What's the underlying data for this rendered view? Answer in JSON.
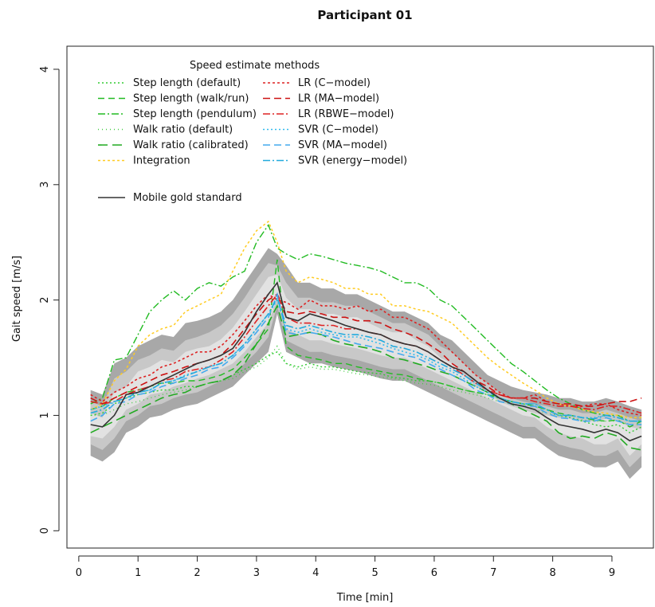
{
  "chart_data": {
    "type": "line",
    "title": "Participant 01",
    "xlabel": "Time [min]",
    "ylabel": "Gait speed [m/s]",
    "xlim": [
      -0.2,
      9.7
    ],
    "ylim": [
      -0.15,
      4.2
    ],
    "xticks": [
      0,
      1,
      2,
      3,
      4,
      5,
      6,
      7,
      8,
      9
    ],
    "yticks": [
      0,
      1,
      2,
      3,
      4
    ],
    "legend_title": "Speed estimate methods",
    "legend_placement": "top-left",
    "grid": false,
    "x": [
      0.2,
      0.4,
      0.6,
      0.8,
      1.0,
      1.2,
      1.4,
      1.6,
      1.8,
      2.0,
      2.2,
      2.4,
      2.6,
      2.8,
      3.0,
      3.2,
      3.35,
      3.5,
      3.7,
      3.9,
      4.1,
      4.3,
      4.5,
      4.7,
      4.9,
      5.1,
      5.3,
      5.5,
      5.7,
      5.9,
      6.1,
      6.3,
      6.5,
      6.7,
      6.9,
      7.1,
      7.3,
      7.5,
      7.7,
      7.9,
      8.1,
      8.3,
      8.5,
      8.7,
      8.9,
      9.1,
      9.3,
      9.5
    ],
    "bands": {
      "outer": {
        "color": "#a8a8a8",
        "upper": [
          1.22,
          1.18,
          1.45,
          1.5,
          1.6,
          1.65,
          1.7,
          1.68,
          1.8,
          1.82,
          1.85,
          1.9,
          2.0,
          2.15,
          2.3,
          2.45,
          2.4,
          2.3,
          2.15,
          2.15,
          2.1,
          2.1,
          2.05,
          2.05,
          2.0,
          1.95,
          1.9,
          1.9,
          1.85,
          1.8,
          1.7,
          1.65,
          1.55,
          1.45,
          1.35,
          1.3,
          1.25,
          1.22,
          1.2,
          1.18,
          1.15,
          1.15,
          1.12,
          1.12,
          1.15,
          1.12,
          1.08,
          1.05
        ],
        "lower": [
          0.65,
          0.6,
          0.68,
          0.85,
          0.9,
          0.98,
          1.0,
          1.05,
          1.08,
          1.1,
          1.15,
          1.2,
          1.25,
          1.35,
          1.45,
          1.55,
          1.88,
          1.55,
          1.5,
          1.45,
          1.45,
          1.42,
          1.4,
          1.38,
          1.35,
          1.32,
          1.3,
          1.3,
          1.25,
          1.2,
          1.15,
          1.1,
          1.05,
          1.0,
          0.95,
          0.9,
          0.85,
          0.8,
          0.8,
          0.72,
          0.65,
          0.62,
          0.6,
          0.55,
          0.55,
          0.6,
          0.45,
          0.55
        ]
      },
      "middle": {
        "color": "#c8c8c8",
        "upper": [
          1.12,
          1.08,
          1.32,
          1.38,
          1.48,
          1.52,
          1.58,
          1.56,
          1.65,
          1.68,
          1.72,
          1.78,
          1.88,
          2.02,
          2.18,
          2.32,
          2.3,
          2.15,
          2.02,
          2.02,
          1.98,
          1.98,
          1.95,
          1.95,
          1.9,
          1.85,
          1.8,
          1.8,
          1.75,
          1.7,
          1.6,
          1.55,
          1.45,
          1.35,
          1.28,
          1.2,
          1.15,
          1.12,
          1.1,
          1.08,
          1.05,
          1.05,
          1.02,
          1.02,
          1.05,
          1.02,
          0.98,
          0.95
        ],
        "lower": [
          0.75,
          0.7,
          0.8,
          0.95,
          1.0,
          1.08,
          1.1,
          1.15,
          1.18,
          1.2,
          1.25,
          1.3,
          1.35,
          1.45,
          1.55,
          1.68,
          1.95,
          1.65,
          1.6,
          1.55,
          1.55,
          1.52,
          1.5,
          1.48,
          1.45,
          1.42,
          1.4,
          1.4,
          1.35,
          1.3,
          1.25,
          1.2,
          1.15,
          1.1,
          1.05,
          1.0,
          0.95,
          0.9,
          0.9,
          0.82,
          0.75,
          0.72,
          0.7,
          0.65,
          0.65,
          0.7,
          0.55,
          0.65
        ]
      },
      "inner": {
        "color": "#e2e2e2",
        "upper": [
          1.02,
          0.98,
          1.2,
          1.25,
          1.38,
          1.42,
          1.48,
          1.46,
          1.55,
          1.58,
          1.6,
          1.66,
          1.76,
          1.9,
          2.05,
          2.2,
          2.22,
          2.02,
          1.92,
          1.92,
          1.88,
          1.88,
          1.85,
          1.85,
          1.8,
          1.75,
          1.72,
          1.72,
          1.65,
          1.6,
          1.5,
          1.45,
          1.35,
          1.25,
          1.2,
          1.12,
          1.08,
          1.05,
          1.02,
          1.0,
          0.98,
          0.97,
          0.95,
          0.95,
          0.97,
          0.95,
          0.9,
          0.88
        ],
        "lower": [
          0.82,
          0.8,
          0.9,
          1.05,
          1.1,
          1.18,
          1.2,
          1.25,
          1.28,
          1.32,
          1.35,
          1.4,
          1.45,
          1.55,
          1.68,
          1.8,
          2.02,
          1.75,
          1.7,
          1.65,
          1.65,
          1.62,
          1.6,
          1.58,
          1.55,
          1.52,
          1.5,
          1.5,
          1.45,
          1.4,
          1.35,
          1.3,
          1.25,
          1.2,
          1.15,
          1.1,
          1.05,
          1.0,
          0.98,
          0.9,
          0.85,
          0.82,
          0.8,
          0.75,
          0.75,
          0.8,
          0.65,
          0.75
        ]
      }
    },
    "series": [
      {
        "name": "Step length (default)",
        "color": "#33cc33",
        "dash": "2,3",
        "width": 1.4,
        "values": [
          1.0,
          1.02,
          1.1,
          1.15,
          1.18,
          1.2,
          1.22,
          1.22,
          1.25,
          1.25,
          1.28,
          1.3,
          1.35,
          1.4,
          1.45,
          1.52,
          1.55,
          1.45,
          1.42,
          1.45,
          1.42,
          1.42,
          1.4,
          1.38,
          1.37,
          1.36,
          1.33,
          1.32,
          1.3,
          1.3,
          1.28,
          1.25,
          1.22,
          1.2,
          1.18,
          1.15,
          1.12,
          1.1,
          1.08,
          1.05,
          1.0,
          0.98,
          0.95,
          0.92,
          0.9,
          0.92,
          0.85,
          0.9
        ]
      },
      {
        "name": "Step length (walk/run)",
        "color": "#22bb22",
        "dash": "8,5",
        "width": 1.4,
        "values": [
          1.05,
          1.08,
          1.15,
          1.2,
          1.22,
          1.25,
          1.28,
          1.28,
          1.3,
          1.3,
          1.32,
          1.35,
          1.4,
          1.5,
          1.62,
          1.75,
          2.35,
          1.6,
          1.52,
          1.5,
          1.48,
          1.45,
          1.45,
          1.42,
          1.4,
          1.38,
          1.36,
          1.35,
          1.32,
          1.3,
          1.28,
          1.25,
          1.22,
          1.2,
          1.18,
          1.15,
          1.12,
          1.1,
          1.08,
          1.05,
          1.02,
          1.0,
          0.98,
          0.96,
          0.95,
          0.96,
          0.9,
          0.95
        ]
      },
      {
        "name": "Step length (pendulum)",
        "color": "#22bb22",
        "dash": "9,3,2,3",
        "width": 1.4,
        "values": [
          1.1,
          1.15,
          1.48,
          1.5,
          1.7,
          1.9,
          2.0,
          2.08,
          2.0,
          2.1,
          2.15,
          2.12,
          2.2,
          2.25,
          2.5,
          2.65,
          2.45,
          2.4,
          2.35,
          2.4,
          2.38,
          2.35,
          2.32,
          2.3,
          2.28,
          2.25,
          2.2,
          2.15,
          2.15,
          2.1,
          2.0,
          1.95,
          1.85,
          1.75,
          1.65,
          1.55,
          1.45,
          1.38,
          1.3,
          1.22,
          1.15,
          1.1,
          1.05,
          1.02,
          1.0,
          1.0,
          0.95,
          0.95
        ]
      },
      {
        "name": "Walk ratio (default)",
        "color": "#44cc44",
        "dash": "1,4",
        "width": 1.4,
        "values": [
          1.0,
          1.0,
          1.05,
          1.1,
          1.12,
          1.15,
          1.18,
          1.2,
          1.22,
          1.25,
          1.28,
          1.3,
          1.32,
          1.38,
          1.42,
          1.5,
          1.6,
          1.45,
          1.4,
          1.42,
          1.4,
          1.4,
          1.38,
          1.36,
          1.35,
          1.33,
          1.32,
          1.3,
          1.28,
          1.27,
          1.25,
          1.22,
          1.2,
          1.18,
          1.15,
          1.12,
          1.1,
          1.08,
          1.05,
          1.02,
          1.0,
          0.98,
          0.96,
          0.95,
          0.95,
          0.95,
          0.92,
          0.92
        ]
      },
      {
        "name": "Walk ratio (calibrated)",
        "color": "#22aa22",
        "dash": "12,6",
        "width": 1.6,
        "values": [
          0.85,
          0.9,
          0.95,
          1.0,
          1.05,
          1.1,
          1.15,
          1.18,
          1.2,
          1.25,
          1.28,
          1.3,
          1.35,
          1.45,
          1.62,
          1.8,
          1.95,
          1.68,
          1.7,
          1.72,
          1.7,
          1.65,
          1.62,
          1.6,
          1.58,
          1.55,
          1.5,
          1.48,
          1.45,
          1.42,
          1.38,
          1.35,
          1.3,
          1.25,
          1.2,
          1.15,
          1.1,
          1.05,
          1.0,
          0.95,
          0.85,
          0.8,
          0.82,
          0.8,
          0.85,
          0.82,
          0.72,
          0.7
        ]
      },
      {
        "name": "Integration",
        "color": "#ffcc22",
        "dash": "3,3",
        "width": 1.5,
        "values": [
          1.05,
          1.1,
          1.3,
          1.4,
          1.6,
          1.7,
          1.75,
          1.78,
          1.9,
          1.95,
          2.0,
          2.05,
          2.25,
          2.45,
          2.6,
          2.68,
          2.5,
          2.25,
          2.15,
          2.2,
          2.18,
          2.15,
          2.1,
          2.1,
          2.05,
          2.05,
          1.95,
          1.95,
          1.92,
          1.9,
          1.85,
          1.8,
          1.7,
          1.6,
          1.5,
          1.42,
          1.35,
          1.28,
          1.22,
          1.15,
          1.1,
          1.08,
          1.05,
          1.03,
          1.02,
          1.0,
          0.98,
          0.98
        ]
      },
      {
        "name": "LR (C−model)",
        "color": "#dd2222",
        "dash": "3,3",
        "width": 1.6,
        "values": [
          1.18,
          1.12,
          1.2,
          1.25,
          1.32,
          1.35,
          1.42,
          1.45,
          1.5,
          1.55,
          1.55,
          1.6,
          1.7,
          1.82,
          1.95,
          2.05,
          2.0,
          1.98,
          1.92,
          2.0,
          1.95,
          1.95,
          1.92,
          1.95,
          1.9,
          1.92,
          1.85,
          1.85,
          1.8,
          1.75,
          1.65,
          1.55,
          1.45,
          1.35,
          1.28,
          1.2,
          1.15,
          1.15,
          1.18,
          1.12,
          1.1,
          1.08,
          1.08,
          1.1,
          1.1,
          1.05,
          1.02,
          1.0
        ]
      },
      {
        "name": "LR (MA−model)",
        "color": "#cc1111",
        "dash": "9,5",
        "width": 1.6,
        "values": [
          1.15,
          1.1,
          1.15,
          1.2,
          1.25,
          1.3,
          1.35,
          1.38,
          1.42,
          1.45,
          1.48,
          1.52,
          1.62,
          1.75,
          1.88,
          2.0,
          2.05,
          1.9,
          1.88,
          1.9,
          1.88,
          1.85,
          1.85,
          1.82,
          1.82,
          1.8,
          1.75,
          1.72,
          1.68,
          1.62,
          1.55,
          1.45,
          1.38,
          1.3,
          1.25,
          1.18,
          1.15,
          1.15,
          1.15,
          1.12,
          1.1,
          1.1,
          1.08,
          1.08,
          1.1,
          1.12,
          1.12,
          1.15
        ]
      },
      {
        "name": "LR (RBWE−model)",
        "color": "#dd2222",
        "dash": "9,3,2,3",
        "width": 1.6,
        "values": [
          1.12,
          1.1,
          1.12,
          1.18,
          1.22,
          1.25,
          1.3,
          1.32,
          1.38,
          1.4,
          1.42,
          1.48,
          1.55,
          1.68,
          1.82,
          1.95,
          2.05,
          1.85,
          1.8,
          1.8,
          1.78,
          1.78,
          1.75,
          1.75,
          1.72,
          1.7,
          1.65,
          1.62,
          1.6,
          1.55,
          1.48,
          1.42,
          1.35,
          1.28,
          1.22,
          1.18,
          1.15,
          1.15,
          1.12,
          1.1,
          1.08,
          1.08,
          1.06,
          1.05,
          1.08,
          1.08,
          1.05,
          1.02
        ]
      },
      {
        "name": "SVR (C−model)",
        "color": "#33bbee",
        "dash": "2,3",
        "width": 1.6,
        "values": [
          1.05,
          1.08,
          1.12,
          1.15,
          1.2,
          1.22,
          1.28,
          1.3,
          1.35,
          1.38,
          1.42,
          1.45,
          1.52,
          1.62,
          1.75,
          1.88,
          2.0,
          1.75,
          1.72,
          1.75,
          1.72,
          1.7,
          1.68,
          1.68,
          1.65,
          1.62,
          1.58,
          1.55,
          1.52,
          1.48,
          1.42,
          1.38,
          1.32,
          1.25,
          1.2,
          1.15,
          1.12,
          1.1,
          1.1,
          1.05,
          1.0,
          1.0,
          0.98,
          0.98,
          1.0,
          0.98,
          0.95,
          0.95
        ]
      },
      {
        "name": "SVR (MA−model)",
        "color": "#44aaee",
        "dash": "9,5",
        "width": 1.6,
        "values": [
          0.95,
          1.0,
          1.1,
          1.12,
          1.18,
          1.2,
          1.25,
          1.28,
          1.32,
          1.35,
          1.4,
          1.42,
          1.5,
          1.6,
          1.72,
          1.85,
          2.05,
          1.72,
          1.7,
          1.72,
          1.7,
          1.68,
          1.65,
          1.62,
          1.6,
          1.58,
          1.55,
          1.52,
          1.5,
          1.45,
          1.4,
          1.35,
          1.3,
          1.22,
          1.18,
          1.12,
          1.1,
          1.08,
          1.08,
          1.02,
          0.98,
          0.97,
          0.95,
          0.95,
          0.98,
          0.95,
          0.92,
          0.92
        ]
      },
      {
        "name": "SVR (energy−model)",
        "color": "#22aadd",
        "dash": "9,3,2,3",
        "width": 1.6,
        "values": [
          1.02,
          1.05,
          1.12,
          1.15,
          1.2,
          1.22,
          1.28,
          1.3,
          1.34,
          1.38,
          1.42,
          1.45,
          1.52,
          1.62,
          1.75,
          1.88,
          2.02,
          1.78,
          1.75,
          1.78,
          1.75,
          1.72,
          1.7,
          1.7,
          1.68,
          1.65,
          1.6,
          1.58,
          1.55,
          1.5,
          1.45,
          1.4,
          1.35,
          1.28,
          1.22,
          1.15,
          1.12,
          1.1,
          1.1,
          1.05,
          1.0,
          1.0,
          0.98,
          0.97,
          1.0,
          0.98,
          0.95,
          0.95
        ]
      },
      {
        "name": "Mobile gold standard",
        "color": "#333333",
        "dash": "",
        "width": 1.6,
        "values": [
          0.92,
          0.9,
          1.0,
          1.18,
          1.2,
          1.25,
          1.3,
          1.35,
          1.4,
          1.45,
          1.48,
          1.52,
          1.58,
          1.72,
          1.9,
          2.05,
          2.15,
          1.85,
          1.82,
          1.88,
          1.85,
          1.82,
          1.78,
          1.75,
          1.72,
          1.7,
          1.65,
          1.62,
          1.6,
          1.55,
          1.48,
          1.42,
          1.38,
          1.3,
          1.22,
          1.15,
          1.1,
          1.08,
          1.05,
          0.98,
          0.92,
          0.9,
          0.88,
          0.85,
          0.88,
          0.85,
          0.78,
          0.82
        ]
      }
    ],
    "legend_col1": [
      "Step length (default)",
      "Step length (walk/run)",
      "Step length (pendulum)",
      "Walk ratio (default)",
      "Walk ratio (calibrated)",
      "Integration"
    ],
    "legend_col2": [
      "LR (C−model)",
      "LR (MA−model)",
      "LR (RBWE−model)",
      "SVR (C−model)",
      "SVR (MA−model)",
      "SVR (energy−model)"
    ],
    "legend_gold": "Mobile gold standard"
  }
}
